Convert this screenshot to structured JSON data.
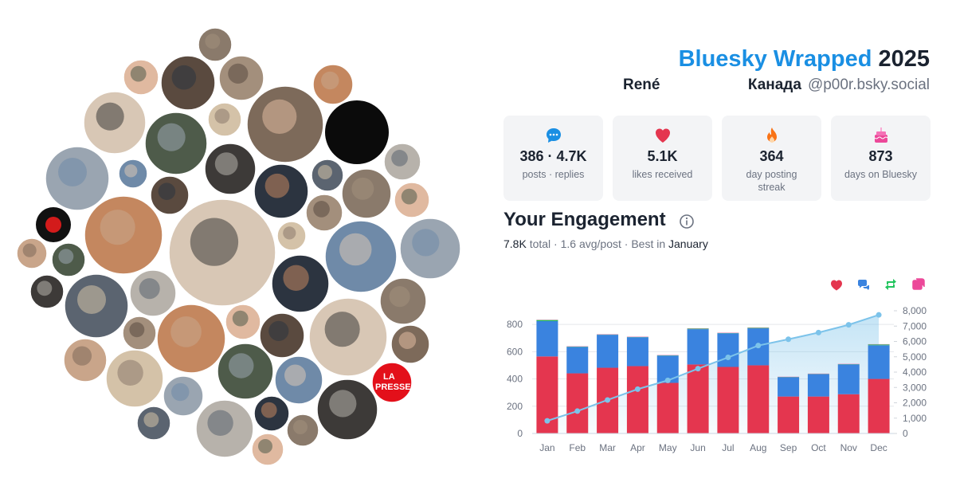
{
  "header": {
    "title": "Bluesky Wrapped",
    "year": "2025",
    "name": "René",
    "location": "Канада",
    "handle": "@p00r.bsky.social"
  },
  "avatar_text": [
    "LA",
    "PRESSE"
  ],
  "stats": [
    {
      "value": "386 · 4.7K",
      "label": "posts · replies"
    },
    {
      "value": "5.1K",
      "label": "likes received"
    },
    {
      "value": "364",
      "label": "day posting streak"
    },
    {
      "value": "873",
      "label": "days on Bluesky"
    }
  ],
  "engagement": {
    "title": "Your Engagement",
    "total": "7.8K",
    "middle": "total · 1.6 avg/post · Best in",
    "best": "January"
  },
  "chart_data": {
    "type": "bar",
    "stacked": true,
    "grid": true,
    "categories": [
      "Jan",
      "Feb",
      "Mar",
      "Apr",
      "May",
      "Jun",
      "Jul",
      "Aug",
      "Sep",
      "Oct",
      "Nov",
      "Dec"
    ],
    "series": [
      {
        "color": "#e4364f",
        "values": [
          565,
          441,
          482,
          494,
          371,
          506,
          488,
          500,
          271,
          271,
          288,
          400
        ]
      },
      {
        "color": "#3a83df",
        "values": [
          259,
          194,
          242,
          212,
          200,
          259,
          247,
          271,
          141,
          164,
          218,
          247
        ]
      },
      {
        "color": "#22c55e",
        "values": [
          8,
          2,
          2,
          2,
          2,
          4,
          2,
          4,
          2,
          2,
          2,
          6
        ]
      },
      {
        "color": "#ec4899",
        "values": [
          2,
          2,
          2,
          2,
          2,
          2,
          2,
          2,
          2,
          2,
          2,
          2
        ]
      },
      {
        "type": "line",
        "axis": "y2",
        "color": "#7cc3ea",
        "values": [
          824,
          1459,
          2183,
          2889,
          3460,
          4225,
          4960,
          5731,
          6143,
          6578,
          7084,
          7731
        ]
      }
    ],
    "ylim": [
      0,
      900
    ],
    "yticks": [
      0,
      200,
      400,
      600,
      800
    ],
    "y2lim": [
      0,
      8000
    ],
    "y2ticks": [
      0,
      {
        "value": 1000,
        "label": "1,000"
      },
      {
        "value": 2000,
        "label": "2,000"
      },
      {
        "value": 3000,
        "label": "3,000"
      },
      {
        "value": 4000,
        "label": "4,000"
      },
      {
        "value": 5000,
        "label": "5,000"
      },
      {
        "value": 6000,
        "label": "6,000"
      },
      {
        "value": 7000,
        "label": "7,000"
      },
      {
        "value": 8000,
        "label": "8,000"
      }
    ]
  }
}
